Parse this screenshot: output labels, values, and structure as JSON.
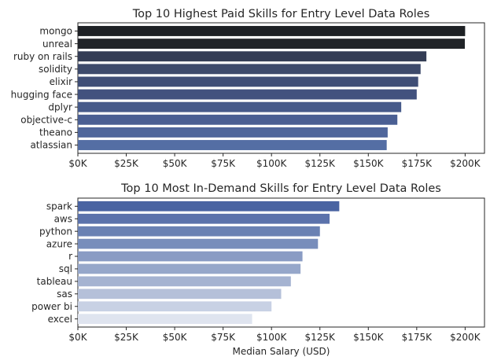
{
  "chart_data": [
    {
      "type": "bar",
      "orientation": "horizontal",
      "title": "Top 10 Highest Paid Skills for Entry Level Data Roles",
      "xlabel": "",
      "ylabel": "",
      "categories": [
        "mongo",
        "unreal",
        "ruby on rails",
        "solidity",
        "elixir",
        "hugging face",
        "dplyr",
        "objective-c",
        "theano",
        "atlassian"
      ],
      "values": [
        200000,
        199850,
        180000,
        177000,
        175750,
        175000,
        167000,
        165000,
        160000,
        159500
      ],
      "xlim": [
        0,
        210000
      ],
      "xticks": [
        0,
        25000,
        50000,
        75000,
        100000,
        125000,
        150000,
        175000,
        200000
      ],
      "xtick_labels": [
        "$0K",
        "$25K",
        "$50K",
        "$75K",
        "$100K",
        "$125K",
        "$150K",
        "$175K",
        "$200K"
      ],
      "colors": [
        "#1d2024",
        "#212428",
        "#343d55",
        "#3d4a6b",
        "#3f4e76",
        "#42527e",
        "#465a8a",
        "#4a5f93",
        "#4f669b",
        "#546ea4"
      ],
      "grid": false,
      "legend": "none"
    },
    {
      "type": "bar",
      "orientation": "horizontal",
      "title": "Top 10 Most In-Demand Skills for Entry Level Data Roles",
      "xlabel": "Median Salary (USD)",
      "ylabel": "",
      "categories": [
        "spark",
        "aws",
        "python",
        "azure",
        "r",
        "sql",
        "tableau",
        "sas",
        "power bi",
        "excel"
      ],
      "values": [
        135000,
        130000,
        125000,
        124000,
        116000,
        115000,
        110000,
        105000,
        100000,
        90000
      ],
      "xlim": [
        0,
        210000
      ],
      "xticks": [
        0,
        25000,
        50000,
        75000,
        100000,
        125000,
        150000,
        175000,
        200000
      ],
      "xtick_labels": [
        "$0K",
        "$25K",
        "$50K",
        "$75K",
        "$100K",
        "$125K",
        "$150K",
        "$175K",
        "$200K"
      ],
      "colors": [
        "#4a64a2",
        "#5b72ab",
        "#6a81b3",
        "#788dbb",
        "#8a9cc4",
        "#96a7ca",
        "#a5b3d1",
        "#b5c0d9",
        "#c8d1e4",
        "#dfe4ef"
      ],
      "grid": false,
      "legend": "none"
    }
  ]
}
